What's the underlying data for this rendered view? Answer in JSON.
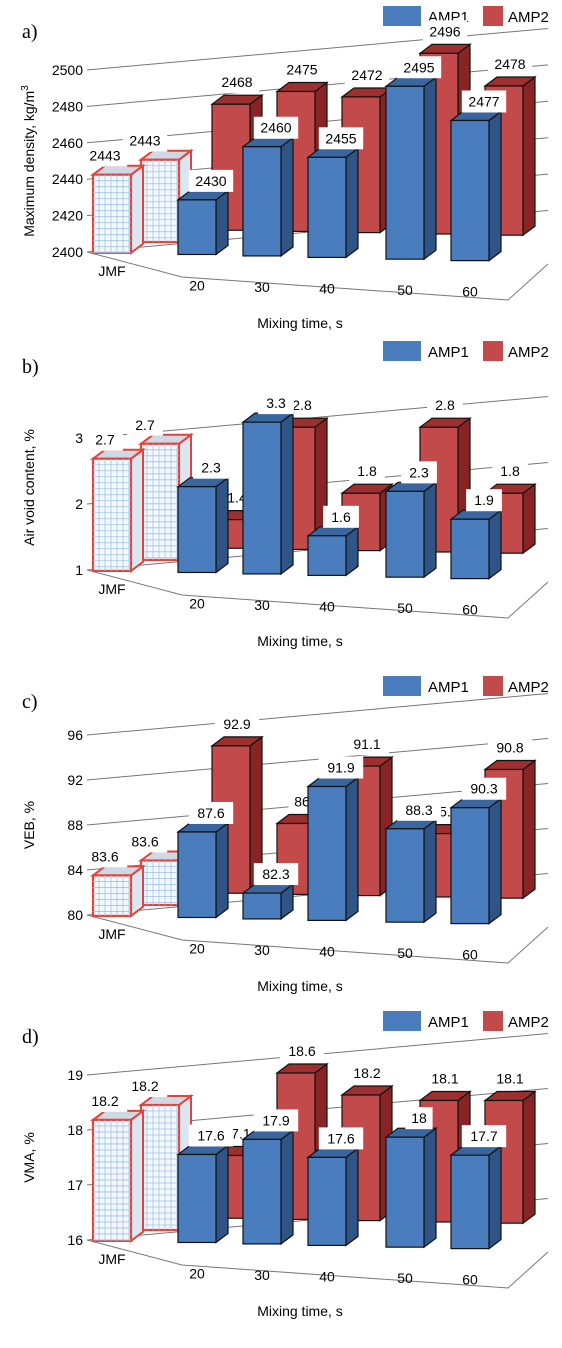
{
  "colors": {
    "amp1": "#4a7dbd",
    "amp1_top": "#3a66a0",
    "amp1_side": "#2f5587",
    "amp2": "#c24a4a",
    "amp2_top": "#9e2f2f",
    "amp2_side": "#8a2424",
    "jmf_border": "#e0443a",
    "jmf_grid": "#9fc3e6",
    "grid": "#777777"
  },
  "chart_data": [
    {
      "type": "bar",
      "panel": "a)",
      "ylabel": "Maximum density, kg/m",
      "ylabel_sup": "3",
      "xlabel": "Mixing time, s",
      "categories": [
        "JMF",
        "20",
        "30",
        "40",
        "50",
        "60"
      ],
      "ylim": [
        2400,
        2500
      ],
      "yticks": [
        "2400",
        "2420",
        "2440",
        "2460",
        "2480",
        "2500"
      ],
      "series": [
        {
          "name": "AMP1",
          "values": [
            2443,
            2430,
            2460,
            2455,
            2495,
            2477
          ]
        },
        {
          "name": "AMP2",
          "values": [
            2443,
            2468,
            2475,
            2472,
            2496,
            2478
          ]
        }
      ],
      "legend": "top-right"
    },
    {
      "type": "bar",
      "panel": "b)",
      "ylabel": "Air void content, %",
      "xlabel": "Mixing time, s",
      "categories": [
        "JMF",
        "20",
        "30",
        "40",
        "50",
        "60"
      ],
      "ylim": [
        1,
        3.5
      ],
      "yticks": [
        "1",
        "2",
        "3"
      ],
      "series": [
        {
          "name": "AMP1",
          "values": [
            2.7,
            2.3,
            3.3,
            1.6,
            2.3,
            1.9
          ]
        },
        {
          "name": "AMP2",
          "values": [
            2.7,
            1.4,
            2.8,
            1.8,
            2.8,
            1.8
          ]
        }
      ],
      "legend": "top-right"
    },
    {
      "type": "bar",
      "panel": "c)",
      "ylabel": "VEB, %",
      "xlabel": "Mixing time, s",
      "categories": [
        "JMF",
        "20",
        "30",
        "40",
        "50",
        "60"
      ],
      "ylim": [
        80,
        96
      ],
      "yticks": [
        "80",
        "84",
        "88",
        "92",
        "96"
      ],
      "series": [
        {
          "name": "AMP1",
          "values": [
            83.6,
            87.6,
            82.3,
            91.9,
            88.3,
            90.3
          ]
        },
        {
          "name": "AMP2",
          "values": [
            83.6,
            92.9,
            86,
            91.1,
            85.1,
            90.8
          ]
        }
      ],
      "legend": "top-right"
    },
    {
      "type": "bar",
      "panel": "d)",
      "ylabel": "VMA, %",
      "xlabel": "Mixing time, s",
      "categories": [
        "JMF",
        "20",
        "30",
        "40",
        "50",
        "60"
      ],
      "ylim": [
        16,
        19
      ],
      "yticks": [
        "16",
        "17",
        "18",
        "19"
      ],
      "series": [
        {
          "name": "AMP1",
          "values": [
            18.2,
            17.6,
            17.9,
            17.6,
            18,
            17.7
          ]
        },
        {
          "name": "AMP2",
          "values": [
            18.2,
            17.1,
            18.6,
            18.2,
            18.1,
            18.1
          ]
        }
      ],
      "legend": "top-right"
    }
  ]
}
